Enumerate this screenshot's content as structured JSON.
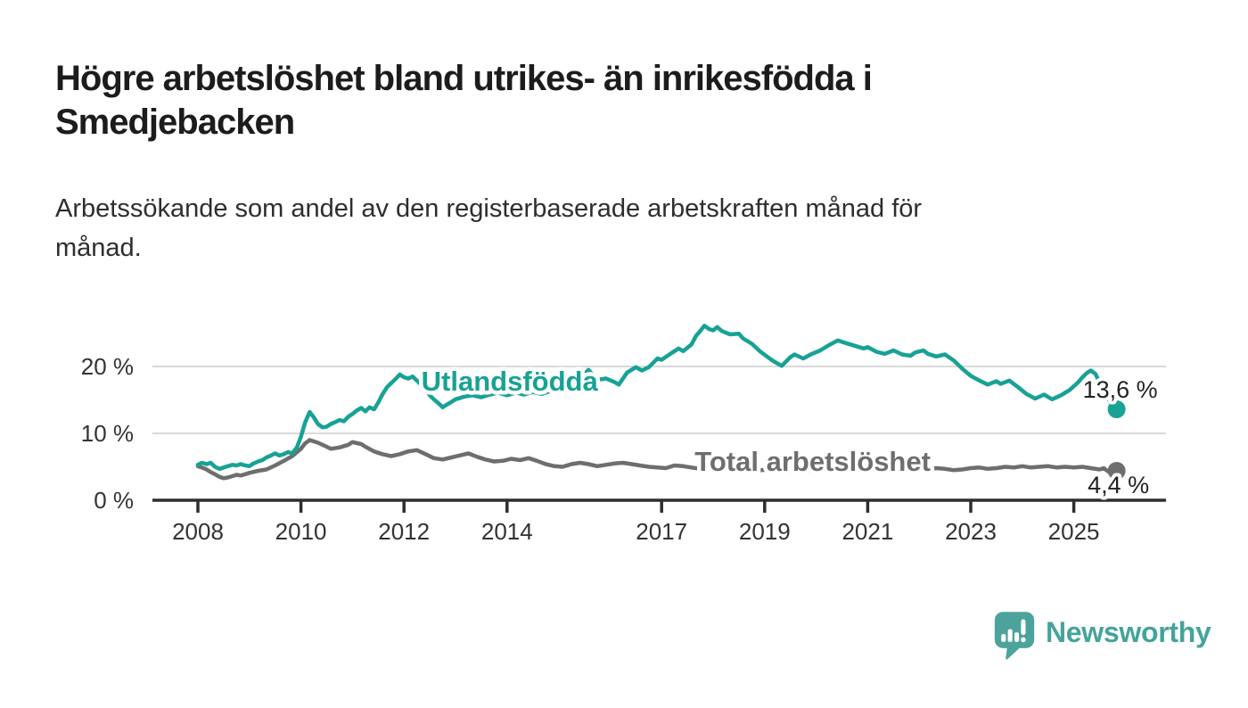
{
  "header": {
    "title_line1": "Högre arbetslöshet bland utrikes- än inrikesfödda i",
    "title_line2": "Smedjebacken",
    "subtitle_line1": "Arbetssökande som andel av den registerbaserade arbetskraften månad för",
    "subtitle_line2": "månad."
  },
  "footer": {
    "brand_label": "Newsworthy",
    "logo_icon": "newsworthy-speech-bubble-bar-chart-icon"
  },
  "colors": {
    "accent_teal": "#17a295",
    "series_gray": "#6e6e6e",
    "logo_teal": "#45a39b",
    "grid": "#d9d9d9",
    "axis": "#2e2e2e",
    "tick_text": "#333333",
    "value_text": "#222222",
    "title_text": "#1c1c1c"
  },
  "chart_data": {
    "type": "line",
    "title": "",
    "xlabel": "",
    "ylabel": "",
    "ylim": [
      0,
      27.5
    ],
    "xlim_years": [
      2007.1,
      2026.8
    ],
    "grid": "horizontal",
    "legend_position": "inline-labels",
    "y_gridlines": [
      10,
      20
    ],
    "y_ticks": [
      {
        "value": 0,
        "label": "0 %"
      },
      {
        "value": 10,
        "label": "10 %"
      },
      {
        "value": 20,
        "label": "20 %"
      }
    ],
    "x_ticks": [
      {
        "value": 2008,
        "label": "2008"
      },
      {
        "value": 2010,
        "label": "2010"
      },
      {
        "value": 2012,
        "label": "2012"
      },
      {
        "value": 2014,
        "label": "2014"
      },
      {
        "value": 2017,
        "label": "2017"
      },
      {
        "value": 2019,
        "label": "2019"
      },
      {
        "value": 2021,
        "label": "2021"
      },
      {
        "value": 2023,
        "label": "2023"
      },
      {
        "value": 2025,
        "label": "2025"
      }
    ],
    "series": [
      {
        "name": "Utlandsfödda",
        "color": "#17a295",
        "end_label": "13,6 %",
        "end_value": 13.6,
        "points": [
          [
            2008.0,
            5.3
          ],
          [
            2008.08,
            5.6
          ],
          [
            2008.17,
            5.4
          ],
          [
            2008.25,
            5.6
          ],
          [
            2008.33,
            5.0
          ],
          [
            2008.42,
            4.7
          ],
          [
            2008.5,
            4.9
          ],
          [
            2008.58,
            5.1
          ],
          [
            2008.67,
            5.3
          ],
          [
            2008.75,
            5.2
          ],
          [
            2008.83,
            5.4
          ],
          [
            2008.92,
            5.2
          ],
          [
            2009.0,
            5.1
          ],
          [
            2009.08,
            5.5
          ],
          [
            2009.17,
            5.8
          ],
          [
            2009.25,
            6.0
          ],
          [
            2009.33,
            6.4
          ],
          [
            2009.42,
            6.7
          ],
          [
            2009.5,
            7.0
          ],
          [
            2009.58,
            6.7
          ],
          [
            2009.67,
            6.9
          ],
          [
            2009.75,
            7.2
          ],
          [
            2009.83,
            7.0
          ],
          [
            2009.92,
            7.9
          ],
          [
            2010.0,
            9.5
          ],
          [
            2010.08,
            11.6
          ],
          [
            2010.17,
            13.2
          ],
          [
            2010.25,
            12.4
          ],
          [
            2010.33,
            11.4
          ],
          [
            2010.42,
            10.9
          ],
          [
            2010.5,
            11.0
          ],
          [
            2010.58,
            11.4
          ],
          [
            2010.67,
            11.7
          ],
          [
            2010.75,
            12.0
          ],
          [
            2010.83,
            11.8
          ],
          [
            2010.92,
            12.5
          ],
          [
            2011.0,
            12.9
          ],
          [
            2011.08,
            13.4
          ],
          [
            2011.17,
            13.8
          ],
          [
            2011.25,
            13.3
          ],
          [
            2011.33,
            13.9
          ],
          [
            2011.42,
            13.6
          ],
          [
            2011.5,
            14.6
          ],
          [
            2011.58,
            15.8
          ],
          [
            2011.67,
            16.9
          ],
          [
            2011.75,
            17.5
          ],
          [
            2011.83,
            18.1
          ],
          [
            2011.92,
            18.8
          ],
          [
            2012.0,
            18.4
          ],
          [
            2012.08,
            18.2
          ],
          [
            2012.17,
            18.5
          ],
          [
            2012.25,
            17.9
          ],
          [
            2012.33,
            17.3
          ],
          [
            2012.42,
            16.6
          ],
          [
            2012.5,
            15.7
          ],
          [
            2012.58,
            15.1
          ],
          [
            2012.67,
            14.5
          ],
          [
            2012.75,
            13.9
          ],
          [
            2012.83,
            14.3
          ],
          [
            2012.92,
            14.7
          ],
          [
            2013.0,
            15.1
          ],
          [
            2013.17,
            15.5
          ],
          [
            2013.33,
            15.7
          ],
          [
            2013.5,
            15.4
          ],
          [
            2013.67,
            15.8
          ],
          [
            2013.83,
            16.1
          ],
          [
            2014.0,
            15.7
          ],
          [
            2014.17,
            16.1
          ],
          [
            2014.33,
            15.8
          ],
          [
            2014.5,
            16.2
          ],
          [
            2014.67,
            15.9
          ],
          [
            2014.83,
            16.3
          ],
          [
            2015.0,
            16.8
          ],
          [
            2015.17,
            17.3
          ],
          [
            2015.33,
            17.9
          ],
          [
            2015.5,
            18.8
          ],
          [
            2015.58,
            19.5
          ],
          [
            2015.75,
            18.0
          ],
          [
            2015.92,
            18.2
          ],
          [
            2016.08,
            17.7
          ],
          [
            2016.17,
            17.3
          ],
          [
            2016.33,
            19.1
          ],
          [
            2016.5,
            19.9
          ],
          [
            2016.62,
            19.4
          ],
          [
            2016.75,
            19.9
          ],
          [
            2016.92,
            21.2
          ],
          [
            2017.0,
            21.0
          ],
          [
            2017.17,
            21.9
          ],
          [
            2017.33,
            22.7
          ],
          [
            2017.42,
            22.3
          ],
          [
            2017.58,
            23.3
          ],
          [
            2017.67,
            24.6
          ],
          [
            2017.75,
            25.3
          ],
          [
            2017.83,
            26.1
          ],
          [
            2017.92,
            25.6
          ],
          [
            2018.0,
            25.4
          ],
          [
            2018.08,
            25.9
          ],
          [
            2018.17,
            25.3
          ],
          [
            2018.33,
            24.8
          ],
          [
            2018.5,
            24.9
          ],
          [
            2018.58,
            24.2
          ],
          [
            2018.75,
            23.4
          ],
          [
            2018.92,
            22.2
          ],
          [
            2019.08,
            21.3
          ],
          [
            2019.17,
            20.8
          ],
          [
            2019.33,
            20.1
          ],
          [
            2019.5,
            21.4
          ],
          [
            2019.58,
            21.8
          ],
          [
            2019.75,
            21.2
          ],
          [
            2019.92,
            21.9
          ],
          [
            2020.08,
            22.4
          ],
          [
            2020.25,
            23.2
          ],
          [
            2020.42,
            23.9
          ],
          [
            2020.58,
            23.5
          ],
          [
            2020.75,
            23.1
          ],
          [
            2020.92,
            22.7
          ],
          [
            2021.0,
            22.9
          ],
          [
            2021.17,
            22.2
          ],
          [
            2021.33,
            21.9
          ],
          [
            2021.5,
            22.4
          ],
          [
            2021.67,
            21.8
          ],
          [
            2021.83,
            21.6
          ],
          [
            2021.92,
            22.1
          ],
          [
            2022.08,
            22.4
          ],
          [
            2022.17,
            21.9
          ],
          [
            2022.33,
            21.5
          ],
          [
            2022.5,
            21.8
          ],
          [
            2022.67,
            20.9
          ],
          [
            2022.83,
            19.7
          ],
          [
            2023.0,
            18.6
          ],
          [
            2023.17,
            17.9
          ],
          [
            2023.33,
            17.3
          ],
          [
            2023.5,
            17.8
          ],
          [
            2023.58,
            17.4
          ],
          [
            2023.75,
            17.9
          ],
          [
            2023.92,
            16.9
          ],
          [
            2024.08,
            15.9
          ],
          [
            2024.25,
            15.2
          ],
          [
            2024.42,
            15.8
          ],
          [
            2024.58,
            15.1
          ],
          [
            2024.75,
            15.7
          ],
          [
            2024.92,
            16.5
          ],
          [
            2025.08,
            17.6
          ],
          [
            2025.17,
            18.4
          ],
          [
            2025.25,
            19.0
          ],
          [
            2025.33,
            19.4
          ],
          [
            2025.42,
            18.9
          ],
          [
            2025.5,
            17.6
          ],
          [
            2025.58,
            16.4
          ],
          [
            2025.67,
            15.2
          ],
          [
            2025.75,
            14.2
          ],
          [
            2025.83,
            13.6
          ]
        ]
      },
      {
        "name": "Total arbetslöshet",
        "color": "#6e6e6e",
        "end_label": "4,4 %",
        "end_value": 4.4,
        "points": [
          [
            2008.0,
            5.1
          ],
          [
            2008.08,
            4.9
          ],
          [
            2008.17,
            4.6
          ],
          [
            2008.25,
            4.2
          ],
          [
            2008.33,
            3.9
          ],
          [
            2008.42,
            3.5
          ],
          [
            2008.5,
            3.3
          ],
          [
            2008.58,
            3.4
          ],
          [
            2008.67,
            3.6
          ],
          [
            2008.75,
            3.8
          ],
          [
            2008.83,
            3.7
          ],
          [
            2008.92,
            3.9
          ],
          [
            2009.0,
            4.1
          ],
          [
            2009.17,
            4.4
          ],
          [
            2009.33,
            4.6
          ],
          [
            2009.5,
            5.2
          ],
          [
            2009.67,
            5.9
          ],
          [
            2009.83,
            6.6
          ],
          [
            2010.0,
            7.7
          ],
          [
            2010.08,
            8.5
          ],
          [
            2010.17,
            9.0
          ],
          [
            2010.33,
            8.6
          ],
          [
            2010.5,
            8.0
          ],
          [
            2010.58,
            7.7
          ],
          [
            2010.75,
            7.9
          ],
          [
            2010.92,
            8.3
          ],
          [
            2011.0,
            8.7
          ],
          [
            2011.17,
            8.4
          ],
          [
            2011.25,
            8.0
          ],
          [
            2011.42,
            7.3
          ],
          [
            2011.58,
            6.9
          ],
          [
            2011.75,
            6.6
          ],
          [
            2011.92,
            6.9
          ],
          [
            2012.08,
            7.3
          ],
          [
            2012.25,
            7.5
          ],
          [
            2012.42,
            6.9
          ],
          [
            2012.58,
            6.3
          ],
          [
            2012.75,
            6.1
          ],
          [
            2012.92,
            6.4
          ],
          [
            2013.08,
            6.7
          ],
          [
            2013.25,
            7.0
          ],
          [
            2013.42,
            6.5
          ],
          [
            2013.58,
            6.1
          ],
          [
            2013.75,
            5.8
          ],
          [
            2013.92,
            5.9
          ],
          [
            2014.08,
            6.2
          ],
          [
            2014.25,
            6.0
          ],
          [
            2014.42,
            6.3
          ],
          [
            2014.58,
            5.9
          ],
          [
            2014.75,
            5.4
          ],
          [
            2014.92,
            5.1
          ],
          [
            2015.08,
            5.0
          ],
          [
            2015.25,
            5.4
          ],
          [
            2015.42,
            5.6
          ],
          [
            2015.58,
            5.4
          ],
          [
            2015.75,
            5.1
          ],
          [
            2015.92,
            5.3
          ],
          [
            2016.08,
            5.5
          ],
          [
            2016.25,
            5.6
          ],
          [
            2016.42,
            5.4
          ],
          [
            2016.58,
            5.2
          ],
          [
            2016.75,
            5.0
          ],
          [
            2016.92,
            4.9
          ],
          [
            2017.08,
            4.8
          ],
          [
            2017.25,
            5.2
          ],
          [
            2017.42,
            5.1
          ],
          [
            2017.58,
            4.9
          ],
          [
            2017.75,
            4.7
          ],
          [
            2017.92,
            4.6
          ],
          [
            2018.17,
            4.8
          ],
          [
            2018.42,
            4.6
          ],
          [
            2018.67,
            4.4
          ],
          [
            2018.92,
            4.5
          ],
          [
            2019.17,
            4.6
          ],
          [
            2019.42,
            4.4
          ],
          [
            2019.67,
            4.3
          ],
          [
            2019.92,
            4.5
          ],
          [
            2020.17,
            5.2
          ],
          [
            2020.42,
            5.6
          ],
          [
            2020.67,
            5.4
          ],
          [
            2020.92,
            5.1
          ],
          [
            2021.17,
            4.9
          ],
          [
            2021.42,
            4.7
          ],
          [
            2021.67,
            4.5
          ],
          [
            2021.92,
            4.4
          ],
          [
            2022.17,
            4.6
          ],
          [
            2022.33,
            4.8
          ],
          [
            2022.5,
            4.7
          ],
          [
            2022.67,
            4.5
          ],
          [
            2022.83,
            4.6
          ],
          [
            2023.0,
            4.8
          ],
          [
            2023.17,
            4.9
          ],
          [
            2023.33,
            4.7
          ],
          [
            2023.5,
            4.8
          ],
          [
            2023.67,
            5.0
          ],
          [
            2023.83,
            4.9
          ],
          [
            2024.0,
            5.1
          ],
          [
            2024.17,
            4.9
          ],
          [
            2024.33,
            5.0
          ],
          [
            2024.5,
            5.1
          ],
          [
            2024.67,
            4.9
          ],
          [
            2024.83,
            5.0
          ],
          [
            2025.0,
            4.9
          ],
          [
            2025.17,
            5.0
          ],
          [
            2025.33,
            4.8
          ],
          [
            2025.5,
            4.6
          ],
          [
            2025.58,
            4.8
          ],
          [
            2025.67,
            4.3
          ],
          [
            2025.75,
            4.6
          ],
          [
            2025.83,
            4.4
          ]
        ]
      }
    ]
  }
}
